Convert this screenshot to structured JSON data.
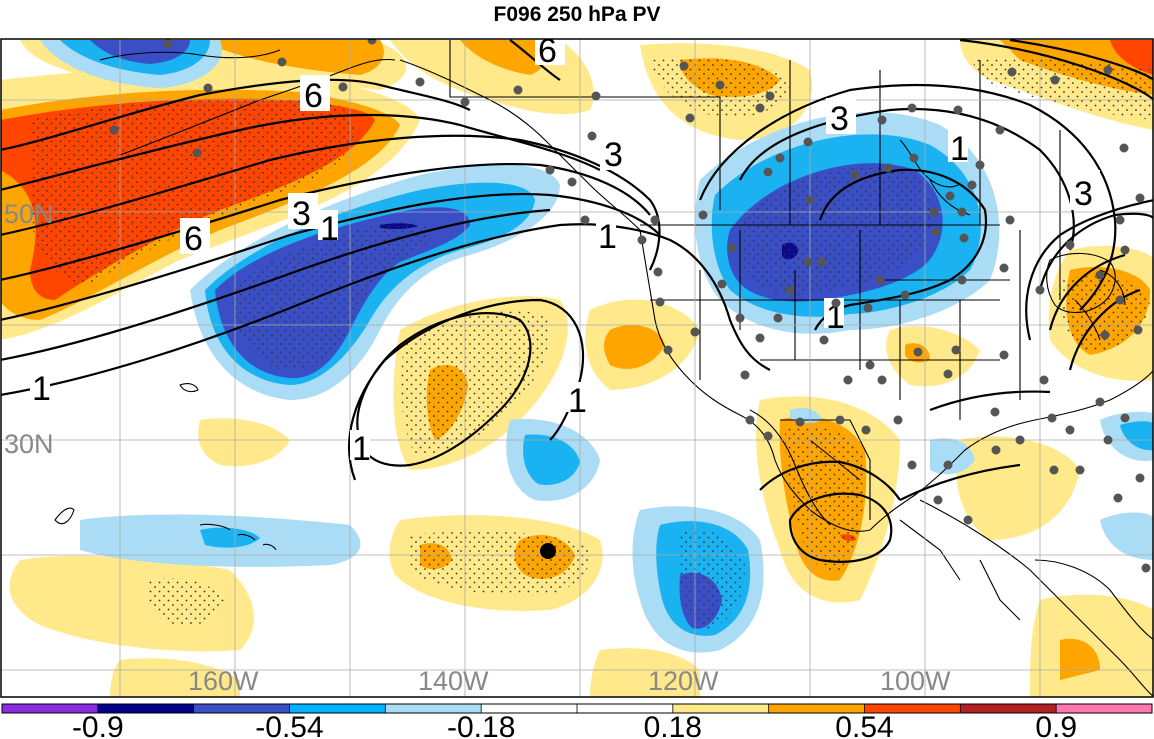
{
  "title": "F096 250 hPa PV",
  "map": {
    "lon_labels": [
      "160W",
      "140W",
      "120W",
      "100W"
    ],
    "lat_labels": [
      "50N",
      "30N"
    ],
    "contour_labels": [
      "6",
      "6",
      "6",
      "3",
      "3",
      "3",
      "3",
      "1",
      "1",
      "1",
      "1",
      "1",
      "1",
      "1"
    ],
    "station_marker_color": "#555555",
    "highlight_marker_color": "#000000"
  },
  "colorbar": {
    "labels": [
      "-0.9",
      "-0.54",
      "-0.18",
      "0.18",
      "0.54",
      "0.9"
    ],
    "colors": [
      "#8a2be2",
      "#00008b",
      "#3a4fc6",
      "#00b2ff",
      "#aadcf5",
      "#ffffff",
      "#ffffff",
      "#ffe98a",
      "#ffa500",
      "#ff4500",
      "#b22222",
      "#ff79b0"
    ]
  },
  "legend_colors": {
    "neg_weak": "#aadcf5",
    "neg_mid": "#1ab2f0",
    "neg_strong": "#3a4fc6",
    "neg_max": "#0a0a8a",
    "pos_weak": "#ffe98a",
    "pos_mid": "#ffa500",
    "pos_strong": "#ff4500",
    "pos_max": "#b22222"
  }
}
